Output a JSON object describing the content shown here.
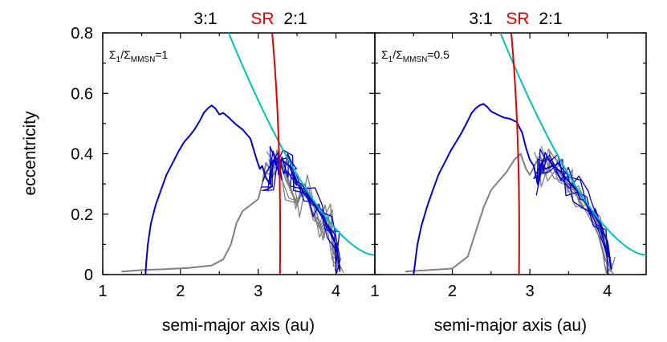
{
  "chart_data": [
    {
      "type": "line",
      "panel_label_main": "Σ",
      "panel_label_sub1": "1",
      "panel_label_mid": "/Σ",
      "panel_label_sub2": "MMSN",
      "panel_label_tail": "=1",
      "ylabel": "eccentricity",
      "xlabel": "semi-major axis (au)",
      "xlim": [
        1,
        4.5
      ],
      "ylim": [
        0,
        0.8
      ],
      "x_ticks": [
        1,
        2,
        3,
        4
      ],
      "y_ticks": [
        0,
        0.2,
        0.4,
        0.6,
        0.8
      ],
      "x_tick_labels": [
        "1",
        "2",
        "3",
        "4"
      ],
      "y_tick_labels": [
        "0",
        "0.2",
        "0.4",
        "0.6",
        "0.8"
      ],
      "resonances": {
        "r31_label": "3:1",
        "r31_a": 2.5,
        "sr_label": "SR",
        "r21_label": "2:1",
        "r21_a": 3.28
      },
      "series": [
        {
          "name": "planetesimal-blue",
          "color": "#0000cc",
          "x": [
            1.55,
            1.56,
            1.58,
            1.62,
            1.68,
            1.75,
            1.82,
            1.9,
            1.98,
            2.05,
            2.12,
            2.18,
            2.25,
            2.3,
            2.35,
            2.4,
            2.45,
            2.5,
            2.55,
            2.62,
            2.7,
            2.8,
            2.9,
            2.98,
            3.02,
            3.05,
            3.1,
            3.15,
            3.2,
            3.25,
            3.3,
            3.35,
            3.4,
            3.45,
            3.5,
            3.6,
            3.7,
            3.8,
            3.9,
            4.0,
            4.05
          ],
          "y": [
            0.0,
            0.04,
            0.1,
            0.17,
            0.23,
            0.28,
            0.33,
            0.37,
            0.41,
            0.44,
            0.46,
            0.48,
            0.51,
            0.535,
            0.55,
            0.56,
            0.55,
            0.53,
            0.535,
            0.52,
            0.5,
            0.48,
            0.45,
            0.38,
            0.35,
            0.36,
            0.32,
            0.3,
            0.38,
            0.35,
            0.38,
            0.37,
            0.36,
            0.33,
            0.3,
            0.27,
            0.24,
            0.2,
            0.16,
            0.1,
            0.02
          ]
        },
        {
          "name": "planetesimal-gray",
          "color": "#808080",
          "x": [
            1.25,
            1.5,
            1.8,
            2.1,
            2.4,
            2.55,
            2.65,
            2.72,
            2.8,
            2.9,
            3.0,
            3.05,
            3.1,
            3.2,
            3.3,
            3.4,
            3.5,
            3.6,
            3.7,
            3.8,
            3.9,
            4.0,
            4.05
          ],
          "y": [
            0.01,
            0.015,
            0.018,
            0.022,
            0.03,
            0.05,
            0.1,
            0.17,
            0.21,
            0.23,
            0.25,
            0.3,
            0.37,
            0.33,
            0.38,
            0.29,
            0.23,
            0.3,
            0.2,
            0.15,
            0.19,
            0.06,
            0.01
          ]
        }
      ]
    },
    {
      "type": "line",
      "panel_label_main": "Σ",
      "panel_label_sub1": "1",
      "panel_label_mid": "/Σ",
      "panel_label_sub2": "MMSN",
      "panel_label_tail": "=0.5",
      "xlabel": "semi-major axis (au)",
      "xlim": [
        1,
        4.5
      ],
      "ylim": [
        0,
        0.8
      ],
      "x_ticks": [
        1,
        2,
        3,
        4
      ],
      "x_tick_labels": [
        "1",
        "2",
        "3",
        "4"
      ],
      "resonances": {
        "r31_label": "3:1",
        "r31_a": 2.5,
        "sr_label": "SR",
        "r21_label": "2:1",
        "r21_a": 2.86
      },
      "series": [
        {
          "name": "planetesimal-blue",
          "color": "#0000cc",
          "x": [
            1.5,
            1.52,
            1.55,
            1.6,
            1.68,
            1.75,
            1.82,
            1.9,
            1.98,
            2.05,
            2.12,
            2.18,
            2.25,
            2.3,
            2.35,
            2.4,
            2.45,
            2.5,
            2.58,
            2.66,
            2.75,
            2.83,
            2.9,
            2.95,
            3.0,
            3.05,
            3.1,
            3.15,
            3.2,
            3.3,
            3.4,
            3.5,
            3.6,
            3.7,
            3.8,
            3.9,
            4.0,
            4.05
          ],
          "y": [
            0.0,
            0.04,
            0.1,
            0.16,
            0.23,
            0.28,
            0.33,
            0.37,
            0.41,
            0.44,
            0.47,
            0.5,
            0.535,
            0.55,
            0.56,
            0.565,
            0.555,
            0.54,
            0.53,
            0.52,
            0.515,
            0.505,
            0.47,
            0.42,
            0.38,
            0.36,
            0.3,
            0.37,
            0.35,
            0.36,
            0.34,
            0.31,
            0.28,
            0.25,
            0.21,
            0.17,
            0.11,
            0.02
          ]
        },
        {
          "name": "planetesimal-gray",
          "color": "#808080",
          "x": [
            1.4,
            1.7,
            2.0,
            2.2,
            2.3,
            2.4,
            2.5,
            2.6,
            2.7,
            2.8,
            2.88,
            2.95,
            3.0,
            3.1,
            3.2,
            3.3,
            3.4,
            3.5,
            3.6,
            3.7,
            3.8,
            3.9,
            4.0,
            4.05
          ],
          "y": [
            0.01,
            0.015,
            0.02,
            0.06,
            0.14,
            0.22,
            0.28,
            0.31,
            0.34,
            0.38,
            0.4,
            0.35,
            0.33,
            0.38,
            0.33,
            0.37,
            0.33,
            0.3,
            0.27,
            0.24,
            0.2,
            0.16,
            0.05,
            0.01
          ]
        }
      ]
    }
  ]
}
